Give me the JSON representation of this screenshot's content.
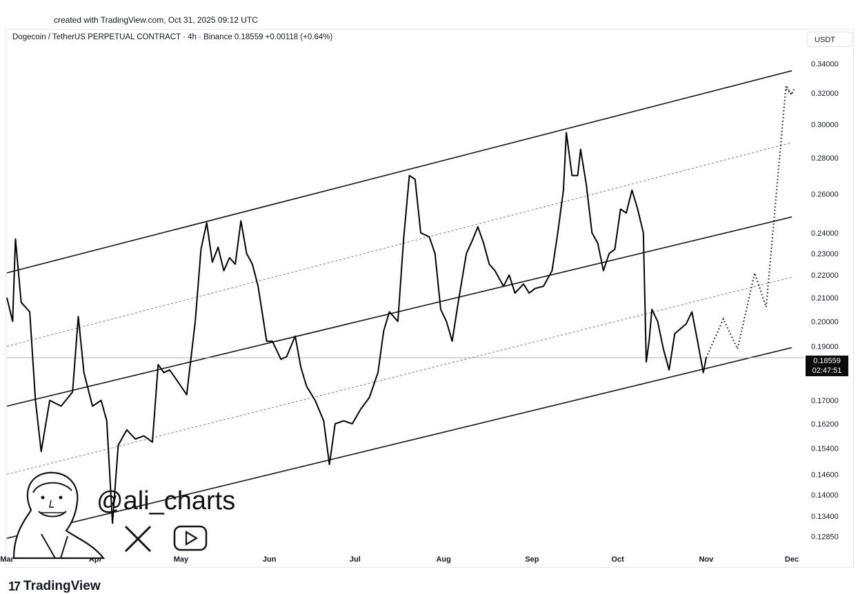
{
  "header": {
    "created_text": "created with TradingView.com, Oct 31, 2025 09:12 UTC",
    "symbol_line": "Dogecoin / TetherUS PERPETUAL CONTRACT · 4h · Binance  0.18559  +0.00118 (+0.64%)",
    "currency": "USDT"
  },
  "price_tag": {
    "price": "0.18559",
    "countdown": "02:47:51"
  },
  "branding": {
    "handle": "@ali_charts",
    "logo_text": "TradingView",
    "logo_mark": "17"
  },
  "chart_data": {
    "type": "line",
    "y_scale": "log",
    "ylim": [
      0.1255,
      0.345
    ],
    "xlim": [
      "2025-03-01",
      "2025-12-01"
    ],
    "x_ticks": [
      {
        "date": "2025-03-01",
        "label": "Mar"
      },
      {
        "date": "2025-04-01",
        "label": "Apr"
      },
      {
        "date": "2025-05-01",
        "label": "May"
      },
      {
        "date": "2025-06-01",
        "label": "Jun"
      },
      {
        "date": "2025-07-01",
        "label": "Jul"
      },
      {
        "date": "2025-08-01",
        "label": "Aug"
      },
      {
        "date": "2025-09-01",
        "label": "Sep"
      },
      {
        "date": "2025-10-01",
        "label": "Oct"
      },
      {
        "date": "2025-11-01",
        "label": "Nov"
      },
      {
        "date": "2025-12-01",
        "label": "Dec"
      }
    ],
    "y_ticks": [
      "0.34000",
      "0.32000",
      "0.30000",
      "0.28000",
      "0.26000",
      "0.24000",
      "0.23000",
      "0.22000",
      "0.21000",
      "0.20000",
      "0.19000",
      "0.17000",
      "0.16200",
      "0.15400",
      "0.14600",
      "0.14000",
      "0.13400",
      "0.12850"
    ],
    "last_price": 0.18559,
    "series": [
      {
        "style": "price",
        "points": [
          [
            "2025-03-01",
            0.21
          ],
          [
            "2025-03-03",
            0.2
          ],
          [
            "2025-03-04",
            0.237
          ],
          [
            "2025-03-06",
            0.208
          ],
          [
            "2025-03-09",
            0.204
          ],
          [
            "2025-03-11",
            0.17
          ],
          [
            "2025-03-13",
            0.153
          ],
          [
            "2025-03-16",
            0.17
          ],
          [
            "2025-03-20",
            0.168
          ],
          [
            "2025-03-24",
            0.173
          ],
          [
            "2025-03-26",
            0.202
          ],
          [
            "2025-03-28",
            0.18
          ],
          [
            "2025-03-31",
            0.168
          ],
          [
            "2025-04-03",
            0.17
          ],
          [
            "2025-04-05",
            0.163
          ],
          [
            "2025-04-07",
            0.132
          ],
          [
            "2025-04-09",
            0.155
          ],
          [
            "2025-04-12",
            0.16
          ],
          [
            "2025-04-15",
            0.157
          ],
          [
            "2025-04-18",
            0.158
          ],
          [
            "2025-04-21",
            0.156
          ],
          [
            "2025-04-23",
            0.183
          ],
          [
            "2025-04-25",
            0.18
          ],
          [
            "2025-04-27",
            0.181
          ],
          [
            "2025-04-29",
            0.178
          ],
          [
            "2025-05-01",
            0.175
          ],
          [
            "2025-05-03",
            0.172
          ],
          [
            "2025-05-06",
            0.2
          ],
          [
            "2025-05-08",
            0.232
          ],
          [
            "2025-05-10",
            0.245
          ],
          [
            "2025-05-12",
            0.226
          ],
          [
            "2025-05-14",
            0.233
          ],
          [
            "2025-05-16",
            0.222
          ],
          [
            "2025-05-18",
            0.228
          ],
          [
            "2025-05-20",
            0.225
          ],
          [
            "2025-05-22",
            0.246
          ],
          [
            "2025-05-24",
            0.23
          ],
          [
            "2025-05-26",
            0.225
          ],
          [
            "2025-05-28",
            0.215
          ],
          [
            "2025-05-31",
            0.192
          ],
          [
            "2025-06-02",
            0.192
          ],
          [
            "2025-06-05",
            0.185
          ],
          [
            "2025-06-07",
            0.186
          ],
          [
            "2025-06-10",
            0.194
          ],
          [
            "2025-06-12",
            0.182
          ],
          [
            "2025-06-14",
            0.175
          ],
          [
            "2025-06-17",
            0.17
          ],
          [
            "2025-06-20",
            0.163
          ],
          [
            "2025-06-22",
            0.149
          ],
          [
            "2025-06-24",
            0.162
          ],
          [
            "2025-06-27",
            0.163
          ],
          [
            "2025-06-30",
            0.162
          ],
          [
            "2025-07-03",
            0.167
          ],
          [
            "2025-07-06",
            0.171
          ],
          [
            "2025-07-09",
            0.18
          ],
          [
            "2025-07-11",
            0.196
          ],
          [
            "2025-07-13",
            0.204
          ],
          [
            "2025-07-16",
            0.2
          ],
          [
            "2025-07-18",
            0.237
          ],
          [
            "2025-07-20",
            0.27
          ],
          [
            "2025-07-22",
            0.268
          ],
          [
            "2025-07-24",
            0.24
          ],
          [
            "2025-07-27",
            0.238
          ],
          [
            "2025-07-29",
            0.23
          ],
          [
            "2025-07-31",
            0.205
          ],
          [
            "2025-08-02",
            0.2
          ],
          [
            "2025-08-04",
            0.192
          ],
          [
            "2025-08-06",
            0.207
          ],
          [
            "2025-08-09",
            0.23
          ],
          [
            "2025-08-11",
            0.236
          ],
          [
            "2025-08-13",
            0.243
          ],
          [
            "2025-08-15",
            0.235
          ],
          [
            "2025-08-17",
            0.225
          ],
          [
            "2025-08-19",
            0.222
          ],
          [
            "2025-08-22",
            0.215
          ],
          [
            "2025-08-24",
            0.22
          ],
          [
            "2025-08-26",
            0.212
          ],
          [
            "2025-08-29",
            0.216
          ],
          [
            "2025-08-31",
            0.212
          ],
          [
            "2025-09-02",
            0.214
          ],
          [
            "2025-09-05",
            0.215
          ],
          [
            "2025-09-08",
            0.222
          ],
          [
            "2025-09-10",
            0.24
          ],
          [
            "2025-09-12",
            0.262
          ],
          [
            "2025-09-13",
            0.295
          ],
          [
            "2025-09-15",
            0.27
          ],
          [
            "2025-09-17",
            0.27
          ],
          [
            "2025-09-18",
            0.285
          ],
          [
            "2025-09-20",
            0.265
          ],
          [
            "2025-09-22",
            0.24
          ],
          [
            "2025-09-24",
            0.235
          ],
          [
            "2025-09-26",
            0.222
          ],
          [
            "2025-09-28",
            0.23
          ],
          [
            "2025-09-30",
            0.232
          ],
          [
            "2025-10-02",
            0.252
          ],
          [
            "2025-10-04",
            0.25
          ],
          [
            "2025-10-06",
            0.262
          ],
          [
            "2025-10-08",
            0.252
          ],
          [
            "2025-10-10",
            0.24
          ],
          [
            "2025-10-11",
            0.184
          ],
          [
            "2025-10-12",
            0.192
          ],
          [
            "2025-10-13",
            0.205
          ],
          [
            "2025-10-15",
            0.2
          ],
          [
            "2025-10-17",
            0.189
          ],
          [
            "2025-10-19",
            0.181
          ],
          [
            "2025-10-21",
            0.195
          ],
          [
            "2025-10-23",
            0.197
          ],
          [
            "2025-10-25",
            0.199
          ],
          [
            "2025-10-27",
            0.204
          ],
          [
            "2025-10-29",
            0.192
          ],
          [
            "2025-10-31",
            0.18
          ],
          [
            "2025-11-01",
            0.1856
          ]
        ]
      },
      {
        "style": "projection",
        "points": [
          [
            "2025-11-01",
            0.1856
          ],
          [
            "2025-11-07",
            0.201
          ],
          [
            "2025-11-12",
            0.189
          ],
          [
            "2025-11-18",
            0.221
          ],
          [
            "2025-11-22",
            0.206
          ],
          [
            "2025-11-29",
            0.325
          ],
          [
            "2025-12-01",
            0.319
          ]
        ]
      },
      {
        "style": "channel",
        "points": [
          [
            "2025-03-01",
            0.221
          ],
          [
            "2025-12-01",
            0.335
          ]
        ]
      },
      {
        "style": "channel-mid",
        "points": [
          [
            "2025-03-01",
            0.19
          ],
          [
            "2025-12-01",
            0.289
          ]
        ]
      },
      {
        "style": "channel",
        "points": [
          [
            "2025-03-01",
            0.168
          ],
          [
            "2025-12-01",
            0.248
          ]
        ]
      },
      {
        "style": "channel-mid",
        "points": [
          [
            "2025-03-01",
            0.146
          ],
          [
            "2025-12-01",
            0.219
          ]
        ]
      },
      {
        "style": "channel",
        "points": [
          [
            "2025-03-01",
            0.128
          ],
          [
            "2025-12-01",
            0.1895
          ]
        ]
      }
    ]
  }
}
